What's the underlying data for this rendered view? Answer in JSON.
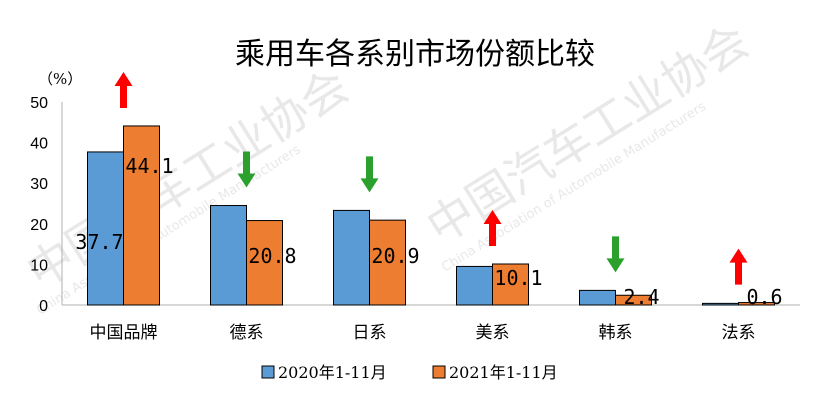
{
  "chart_data": {
    "type": "bar",
    "title": "乘用车各系别市场份额比较",
    "unit_label": "（%）",
    "categories": [
      "中国品牌",
      "德系",
      "日系",
      "美系",
      "韩系",
      "法系"
    ],
    "ylim": [
      0,
      50
    ],
    "yticks": [
      0,
      10,
      20,
      30,
      40,
      50
    ],
    "grid": false,
    "legend_position": "bottom",
    "series": [
      {
        "name": "2020年1-11月",
        "color": "#5b9bd5",
        "values": [
          37.7,
          24.5,
          23.3,
          9.5,
          3.6,
          0.4
        ]
      },
      {
        "name": "2021年1-11月",
        "color": "#ed7d31",
        "values": [
          44.1,
          20.8,
          20.9,
          10.1,
          2.4,
          0.6
        ]
      }
    ],
    "data_labels": [
      {
        "text": "37.7",
        "series": 0,
        "category": 0
      },
      {
        "text": "44.1",
        "series": 1,
        "category": 0
      },
      {
        "text": "20.8",
        "series": 1,
        "category": 1
      },
      {
        "text": "20.9",
        "series": 1,
        "category": 2
      },
      {
        "text": "10.1",
        "series": 1,
        "category": 3
      },
      {
        "text": "2.4",
        "series": 1,
        "category": 4
      },
      {
        "text": "0.6",
        "series": 1,
        "category": 5
      }
    ],
    "trend_arrows": [
      {
        "category": 0,
        "direction": "up",
        "color": "#ff0000"
      },
      {
        "category": 1,
        "direction": "down",
        "color": "#2ca02c"
      },
      {
        "category": 2,
        "direction": "down",
        "color": "#2ca02c"
      },
      {
        "category": 3,
        "direction": "up",
        "color": "#ff0000"
      },
      {
        "category": 4,
        "direction": "down",
        "color": "#2ca02c"
      },
      {
        "category": 5,
        "direction": "up",
        "color": "#ff0000"
      }
    ],
    "watermark": {
      "cn": "中国汽车工业协会",
      "en": "China Association of Automobile Manufacturers"
    }
  }
}
